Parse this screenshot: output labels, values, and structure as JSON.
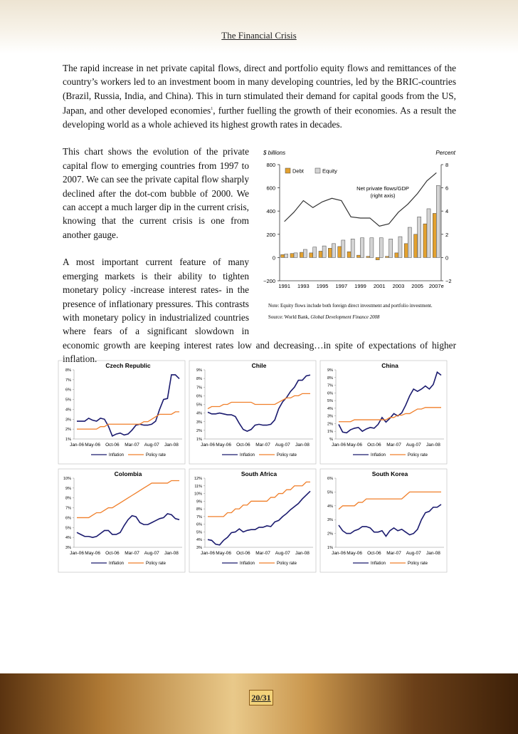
{
  "header": {
    "title": "The Financial Crisis"
  },
  "paragraphs": [
    {
      "text": "The rapid increase in net private capital flows, direct and portfolio equity flows and remittances of the country’s workers led to an investment boom in many developing countries, led by the BRIC-countries (Brazil, Russia, India, and China). This in turn stimulated their demand for capital goods from the US, Japan, and other developed economies",
      "footnote": "1",
      "text_after": ", further fuelling the growth of their economies. As a result the developing world as a whole achieved its highest growth rates in decades."
    },
    {
      "text": "This chart shows the evolution of the private capital flow to emerging countries from 1997 to 2007. We can see the private capital flow sharply declined after the dot-com bubble of 2000. We can accept a much larger dip in the current crisis, knowing that the current crisis is one from another gauge."
    },
    {
      "text": "A most important current feature of many emerging markets is their ability to tighten monetary policy -increase interest rates- in the presence of inflationary pressures. This contrasts with monetary policy in industrialized countries where fears of a significant slowdown in economic growth are keeping interest rates low and decreasing…in spite of expectations of higher inflation."
    }
  ],
  "chart_data": [
    {
      "type": "bar",
      "y_label": "$ billions",
      "y2_label": "Percent",
      "annotation": "(right axis)",
      "note": "Note: Equity flows include both foreign direct investment and portfolio investment.",
      "source": "Source: World Bank, ",
      "source_title": "Global Development Finance 2008",
      "categories": [
        "1991",
        null,
        "1993",
        null,
        "1995",
        null,
        "1997",
        null,
        "1999",
        null,
        "2001",
        null,
        "2003",
        null,
        "2005",
        null,
        "2007e"
      ],
      "series": [
        {
          "name": "Debt",
          "color": "#e3a12f",
          "values": [
            25,
            35,
            45,
            40,
            55,
            80,
            95,
            50,
            20,
            10,
            -20,
            10,
            40,
            120,
            200,
            290,
            380
          ]
        },
        {
          "name": "Equity",
          "color": "#d4d4d4",
          "values": [
            30,
            40,
            70,
            90,
            100,
            120,
            150,
            160,
            170,
            170,
            170,
            160,
            180,
            260,
            350,
            420,
            620
          ]
        },
        {
          "name": "Net private flows/GDP",
          "type": "line",
          "axis": "y2",
          "color": "#333333",
          "values": [
            3.1,
            3.9,
            4.9,
            4.3,
            4.8,
            5.1,
            4.9,
            3.5,
            3.4,
            3.4,
            2.7,
            2.9,
            3.9,
            4.6,
            5.5,
            6.6,
            7.3
          ]
        }
      ],
      "ylim": [
        -200,
        800
      ],
      "yticks": [
        {
          "value": -200,
          "label": "−200"
        },
        0,
        200,
        400,
        600,
        800
      ],
      "y2lim": [
        -2,
        8
      ],
      "y2ticks": [
        {
          "value": -2,
          "label": "−2"
        },
        0,
        2,
        4,
        6,
        8
      ]
    },
    {
      "type": "line",
      "title": "Czech Republic",
      "categories": [
        "Jan-06",
        null,
        null,
        null,
        "May-06",
        null,
        null,
        null,
        null,
        "Oct-06",
        null,
        null,
        null,
        null,
        "Mar-07",
        null,
        null,
        null,
        null,
        "Aug-07",
        null,
        null,
        null,
        null,
        "Jan-08",
        null,
        null
      ],
      "series": [
        {
          "name": "Inflation",
          "color": "#1a1a6e",
          "values": [
            2.8,
            2.8,
            2.8,
            3.1,
            2.9,
            2.8,
            3.1,
            3.0,
            2.3,
            1.3,
            1.5,
            1.6,
            1.4,
            1.5,
            1.9,
            2.4,
            2.5,
            2.4,
            2.4,
            2.5,
            2.8,
            4.0,
            5.0,
            5.1,
            7.5,
            7.5,
            7.1
          ]
        },
        {
          "name": "Policy rate",
          "color": "#f07f2a",
          "values": [
            2.0,
            2.0,
            2.0,
            2.0,
            2.0,
            2.0,
            2.25,
            2.25,
            2.5,
            2.5,
            2.5,
            2.5,
            2.5,
            2.5,
            2.5,
            2.5,
            2.5,
            2.75,
            2.75,
            3.0,
            3.25,
            3.5,
            3.5,
            3.5,
            3.5,
            3.75,
            3.75
          ]
        }
      ],
      "ylim": [
        1,
        8
      ],
      "yticks": [
        {
          "value": 1,
          "label": "1%"
        },
        {
          "value": 2,
          "label": "2%"
        },
        {
          "value": 3,
          "label": "3%"
        },
        {
          "value": 4,
          "label": "4%"
        },
        {
          "value": 5,
          "label": "5%"
        },
        {
          "value": 6,
          "label": "6%"
        },
        {
          "value": 7,
          "label": "7%"
        },
        {
          "value": 8,
          "label": "8%"
        }
      ]
    },
    {
      "type": "line",
      "title": "Chile",
      "categories": [
        "Jan-06",
        null,
        null,
        null,
        "May-06",
        null,
        null,
        null,
        null,
        "Oct-06",
        null,
        null,
        null,
        null,
        "Mar-07",
        null,
        null,
        null,
        null,
        "Aug-07",
        null,
        null,
        null,
        null,
        "Jan-08",
        null,
        null
      ],
      "series": [
        {
          "name": "Inflation",
          "color": "#1a1a6e",
          "values": [
            4.1,
            3.9,
            3.9,
            4.0,
            3.9,
            3.8,
            3.8,
            3.6,
            2.8,
            2.1,
            1.9,
            2.1,
            2.6,
            2.7,
            2.6,
            2.6,
            2.7,
            3.2,
            4.5,
            5.3,
            5.8,
            6.5,
            7.0,
            7.8,
            7.8,
            8.3,
            8.4
          ]
        },
        {
          "name": "Policy rate",
          "color": "#f07f2a",
          "values": [
            4.5,
            4.75,
            4.75,
            4.75,
            5.0,
            5.0,
            5.25,
            5.25,
            5.25,
            5.25,
            5.25,
            5.25,
            5.0,
            5.0,
            5.0,
            5.0,
            5.0,
            5.0,
            5.25,
            5.5,
            5.75,
            5.75,
            6.0,
            6.0,
            6.25,
            6.25,
            6.25
          ]
        }
      ],
      "ylim": [
        1,
        9
      ],
      "yticks": [
        {
          "value": 1,
          "label": "1%"
        },
        {
          "value": 2,
          "label": "2%"
        },
        {
          "value": 3,
          "label": "3%"
        },
        {
          "value": 4,
          "label": "4%"
        },
        {
          "value": 5,
          "label": "5%"
        },
        {
          "value": 6,
          "label": "6%"
        },
        {
          "value": 7,
          "label": "7%"
        },
        {
          "value": 8,
          "label": "8%"
        },
        {
          "value": 9,
          "label": "9%"
        }
      ]
    },
    {
      "type": "line",
      "title": "China",
      "categories": [
        "Jan-06",
        null,
        null,
        null,
        "May-06",
        null,
        null,
        null,
        null,
        "Oct-06",
        null,
        null,
        null,
        null,
        "Mar-07",
        null,
        null,
        null,
        null,
        "Aug-07",
        null,
        null,
        null,
        null,
        "Jan-08",
        null,
        null
      ],
      "series": [
        {
          "name": "Inflation",
          "color": "#1a1a6e",
          "values": [
            1.9,
            0.9,
            0.8,
            1.2,
            1.4,
            1.5,
            1.0,
            1.3,
            1.5,
            1.4,
            1.9,
            2.8,
            2.2,
            2.7,
            3.3,
            3.0,
            3.4,
            4.4,
            5.6,
            6.5,
            6.2,
            6.5,
            6.9,
            6.5,
            7.1,
            8.7,
            8.3
          ]
        },
        {
          "name": "Policy rate",
          "color": "#f07f2a",
          "values": [
            2.25,
            2.25,
            2.25,
            2.25,
            2.5,
            2.5,
            2.5,
            2.5,
            2.5,
            2.5,
            2.5,
            2.5,
            2.5,
            2.8,
            2.8,
            3.1,
            3.1,
            3.3,
            3.3,
            3.6,
            3.9,
            3.9,
            4.1,
            4.1,
            4.1,
            4.1,
            4.1
          ]
        }
      ],
      "ylim": [
        0,
        9
      ],
      "yticks": [
        {
          "value": 0,
          "label": "%"
        },
        {
          "value": 1,
          "label": "1%"
        },
        {
          "value": 2,
          "label": "2%"
        },
        {
          "value": 3,
          "label": "3%"
        },
        {
          "value": 4,
          "label": "4%"
        },
        {
          "value": 5,
          "label": "5%"
        },
        {
          "value": 6,
          "label": "6%"
        },
        {
          "value": 7,
          "label": "7%"
        },
        {
          "value": 8,
          "label": "8%"
        },
        {
          "value": 9,
          "label": "9%"
        }
      ]
    },
    {
      "type": "line",
      "title": "Colombia",
      "categories": [
        "Jan-06",
        null,
        null,
        null,
        "May-06",
        null,
        null,
        null,
        null,
        "Oct-06",
        null,
        null,
        null,
        null,
        "Mar-07",
        null,
        null,
        null,
        null,
        "Aug-07",
        null,
        null,
        null,
        null,
        "Jan-08",
        null,
        null
      ],
      "series": [
        {
          "name": "Inflation",
          "color": "#1a1a6e",
          "values": [
            4.5,
            4.3,
            4.1,
            4.1,
            4.0,
            4.1,
            4.4,
            4.7,
            4.7,
            4.3,
            4.3,
            4.5,
            5.2,
            5.8,
            6.2,
            6.1,
            5.5,
            5.3,
            5.3,
            5.5,
            5.7,
            5.9,
            6.0,
            6.4,
            6.3,
            5.9,
            5.8
          ]
        },
        {
          "name": "Policy rate",
          "color": "#f07f2a",
          "values": [
            6.0,
            6.0,
            6.0,
            6.0,
            6.25,
            6.5,
            6.5,
            6.75,
            7.0,
            7.0,
            7.25,
            7.5,
            7.75,
            8.0,
            8.25,
            8.5,
            8.75,
            9.0,
            9.25,
            9.5,
            9.5,
            9.5,
            9.5,
            9.5,
            9.75,
            9.75,
            9.75
          ]
        }
      ],
      "ylim": [
        3,
        10
      ],
      "yticks": [
        {
          "value": 3,
          "label": "3%"
        },
        {
          "value": 4,
          "label": "4%"
        },
        {
          "value": 5,
          "label": "5%"
        },
        {
          "value": 6,
          "label": "6%"
        },
        {
          "value": 7,
          "label": "7%"
        },
        {
          "value": 8,
          "label": "8%"
        },
        {
          "value": 9,
          "label": "9%"
        },
        {
          "value": 10,
          "label": "10%"
        }
      ]
    },
    {
      "type": "line",
      "title": "South Africa",
      "categories": [
        "Jan-06",
        null,
        null,
        null,
        "May-06",
        null,
        null,
        null,
        null,
        "Oct-06",
        null,
        null,
        null,
        null,
        "Mar-07",
        null,
        null,
        null,
        null,
        "Aug-07",
        null,
        null,
        null,
        null,
        "Jan-08",
        null,
        null
      ],
      "series": [
        {
          "name": "Inflation",
          "color": "#1a1a6e",
          "values": [
            4.0,
            3.9,
            3.4,
            3.3,
            3.9,
            4.3,
            4.9,
            5.0,
            5.4,
            5.0,
            5.2,
            5.3,
            5.3,
            5.6,
            5.6,
            5.8,
            5.7,
            6.3,
            6.5,
            7.0,
            7.4,
            7.9,
            8.3,
            8.7,
            9.3,
            9.8,
            10.3
          ]
        },
        {
          "name": "Policy rate",
          "color": "#f07f2a",
          "values": [
            7.0,
            7.0,
            7.0,
            7.0,
            7.0,
            7.5,
            7.5,
            8.0,
            8.0,
            8.5,
            8.5,
            9.0,
            9.0,
            9.0,
            9.0,
            9.0,
            9.5,
            9.5,
            10.0,
            10.0,
            10.5,
            10.5,
            11.0,
            11.0,
            11.0,
            11.5,
            11.5
          ]
        }
      ],
      "ylim": [
        3,
        12
      ],
      "yticks": [
        {
          "value": 3,
          "label": "3%"
        },
        {
          "value": 4,
          "label": "4%"
        },
        {
          "value": 5,
          "label": "5%"
        },
        {
          "value": 6,
          "label": "6%"
        },
        {
          "value": 7,
          "label": "7%"
        },
        {
          "value": 8,
          "label": "8%"
        },
        {
          "value": 9,
          "label": "9%"
        },
        {
          "value": 10,
          "label": "10%"
        },
        {
          "value": 11,
          "label": "11%"
        },
        {
          "value": 12,
          "label": "12%"
        }
      ]
    },
    {
      "type": "line",
      "title": "South Korea",
      "categories": [
        "Jan-06",
        null,
        null,
        null,
        "May-06",
        null,
        null,
        null,
        null,
        "Oct-06",
        null,
        null,
        null,
        null,
        "Mar-07",
        null,
        null,
        null,
        null,
        "Aug-07",
        null,
        null,
        null,
        null,
        "Jan-08",
        null,
        null
      ],
      "series": [
        {
          "name": "Inflation",
          "color": "#1a1a6e",
          "values": [
            2.6,
            2.2,
            2.0,
            2.0,
            2.2,
            2.3,
            2.5,
            2.5,
            2.4,
            2.1,
            2.1,
            2.2,
            1.8,
            2.2,
            2.4,
            2.2,
            2.3,
            2.1,
            1.9,
            2.0,
            2.3,
            3.0,
            3.5,
            3.6,
            3.9,
            3.9,
            4.1
          ]
        },
        {
          "name": "Policy rate",
          "color": "#f07f2a",
          "values": [
            3.75,
            4.0,
            4.0,
            4.0,
            4.0,
            4.25,
            4.25,
            4.5,
            4.5,
            4.5,
            4.5,
            4.5,
            4.5,
            4.5,
            4.5,
            4.5,
            4.5,
            4.75,
            5.0,
            5.0,
            5.0,
            5.0,
            5.0,
            5.0,
            5.0,
            5.0,
            5.0
          ]
        }
      ],
      "ylim": [
        1,
        6
      ],
      "yticks": [
        {
          "value": 1,
          "label": "1%"
        },
        {
          "value": 2,
          "label": "2%"
        },
        {
          "value": 3,
          "label": "3%"
        },
        {
          "value": 4,
          "label": "4%"
        },
        {
          "value": 5,
          "label": "5%"
        },
        {
          "value": 6,
          "label": "6%"
        }
      ]
    }
  ],
  "footer": {
    "page": "20/31"
  }
}
